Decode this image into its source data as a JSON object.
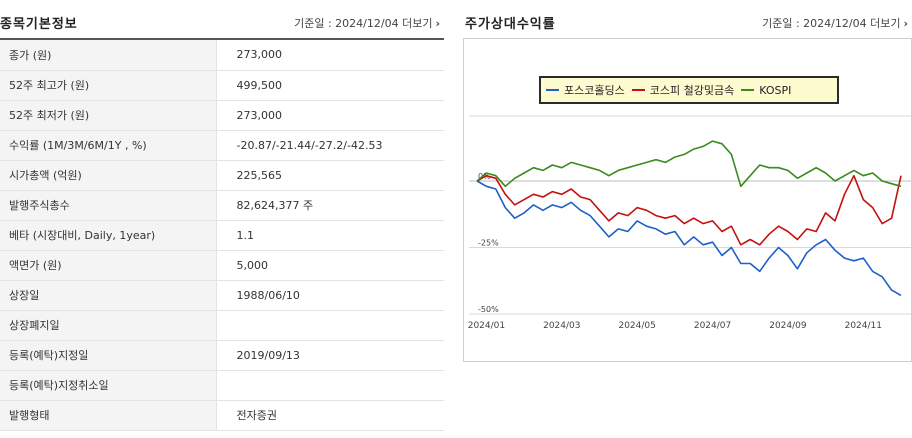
{
  "basic": {
    "title": "종목기본정보",
    "date_label": "기준일 : 2024/12/04",
    "more_label": "더보기",
    "rows": [
      {
        "label": "종가 (원)",
        "value": "273,000"
      },
      {
        "label": "52주 최고가 (원)",
        "value": "499,500"
      },
      {
        "label": "52주 최저가 (원)",
        "value": "273,000"
      },
      {
        "label": "수익률 (1M/3M/6M/1Y , %)",
        "value": "-20.87/-21.44/-27.2/-42.53"
      },
      {
        "label": "시가총액 (억원)",
        "value": "225,565"
      },
      {
        "label": "발행주식총수",
        "value": "82,624,377 주"
      },
      {
        "label": "베타 (시장대비, Daily, 1year)",
        "value": "1.1"
      },
      {
        "label": "액면가 (원)",
        "value": "5,000"
      },
      {
        "label": "상장일",
        "value": "1988/06/10"
      },
      {
        "label": "상장폐지일",
        "value": ""
      },
      {
        "label": "등록(예탁)지정일",
        "value": "2019/09/13"
      },
      {
        "label": "등록(예탁)지정취소일",
        "value": ""
      },
      {
        "label": "발행형태",
        "value": "전자증권"
      }
    ]
  },
  "relative": {
    "title": "주가상대수익률",
    "date_label": "기준일 : 2024/12/04",
    "more_label": "더보기"
  },
  "chart_data": {
    "type": "line",
    "title": "",
    "xlabel": "",
    "ylabel": "",
    "x_ticks": [
      "2024/01",
      "2024/03",
      "2024/05",
      "2024/07",
      "2024/09",
      "2024/11"
    ],
    "y_ticks": [
      "0%",
      "-25%",
      "-50%"
    ],
    "y_tick_values": [
      0,
      -25,
      -50
    ],
    "ylim": [
      -50,
      25
    ],
    "xlim": [
      0,
      11.25
    ],
    "grid": true,
    "legend_position": "top",
    "series": [
      {
        "name": "포스코홀딩스",
        "color": "#1f5fc8",
        "x": [
          0,
          0.25,
          0.5,
          0.75,
          1,
          1.25,
          1.5,
          1.75,
          2,
          2.25,
          2.5,
          2.75,
          3,
          3.25,
          3.5,
          3.75,
          4,
          4.25,
          4.5,
          4.75,
          5,
          5.25,
          5.5,
          5.75,
          6,
          6.25,
          6.5,
          6.75,
          7,
          7.25,
          7.5,
          7.75,
          8,
          8.25,
          8.5,
          8.75,
          9,
          9.25,
          9.5,
          9.75,
          10,
          10.25,
          10.5,
          10.75,
          11,
          11.25
        ],
        "y": [
          0,
          -2,
          -3,
          -10,
          -14,
          -12,
          -9,
          -11,
          -9,
          -10,
          -8,
          -11,
          -13,
          -17,
          -21,
          -18,
          -19,
          -15,
          -17,
          -18,
          -20,
          -19,
          -24,
          -21,
          -24,
          -23,
          -28,
          -25,
          -31,
          -31,
          -34,
          -29,
          -25,
          -28,
          -33,
          -27,
          -24,
          -22,
          -26,
          -29,
          -30,
          -29,
          -34,
          -36,
          -41,
          -43
        ]
      },
      {
        "name": "코스피 철강및금속",
        "color": "#c41010",
        "x": [
          0,
          0.25,
          0.5,
          0.75,
          1,
          1.25,
          1.5,
          1.75,
          2,
          2.25,
          2.5,
          2.75,
          3,
          3.25,
          3.5,
          3.75,
          4,
          4.25,
          4.5,
          4.75,
          5,
          5.25,
          5.5,
          5.75,
          6,
          6.25,
          6.5,
          6.75,
          7,
          7.25,
          7.5,
          7.75,
          8,
          8.25,
          8.5,
          8.75,
          9,
          9.25,
          9.5,
          9.75,
          10,
          10.25,
          10.5,
          10.75,
          11,
          11.25
        ],
        "y": [
          0,
          2,
          1,
          -5,
          -9,
          -7,
          -5,
          -6,
          -4,
          -5,
          -3,
          -6,
          -7,
          -11,
          -15,
          -12,
          -13,
          -10,
          -11,
          -13,
          -14,
          -13,
          -16,
          -14,
          -16,
          -15,
          -19,
          -17,
          -24,
          -22,
          -24,
          -20,
          -17,
          -19,
          -22,
          -18,
          -19,
          -12,
          -15,
          -5,
          2,
          -7,
          -10,
          -16,
          -14,
          2
        ]
      },
      {
        "name": "KOSPI",
        "color": "#3a8a1e",
        "x": [
          0,
          0.25,
          0.5,
          0.75,
          1,
          1.25,
          1.5,
          1.75,
          2,
          2.25,
          2.5,
          2.75,
          3,
          3.25,
          3.5,
          3.75,
          4,
          4.25,
          4.5,
          4.75,
          5,
          5.25,
          5.5,
          5.75,
          6,
          6.25,
          6.5,
          6.75,
          7,
          7.25,
          7.5,
          7.75,
          8,
          8.25,
          8.5,
          8.75,
          9,
          9.25,
          9.5,
          9.75,
          10,
          10.25,
          10.5,
          10.75,
          11,
          11.25
        ],
        "y": [
          0,
          3,
          2,
          -2,
          1,
          3,
          5,
          4,
          6,
          5,
          7,
          6,
          5,
          4,
          2,
          4,
          5,
          6,
          7,
          8,
          7,
          9,
          10,
          12,
          13,
          15,
          14,
          10,
          -2,
          2,
          6,
          5,
          5,
          4,
          1,
          3,
          5,
          3,
          0,
          2,
          4,
          2,
          3,
          0,
          -1,
          -2
        ]
      }
    ]
  }
}
